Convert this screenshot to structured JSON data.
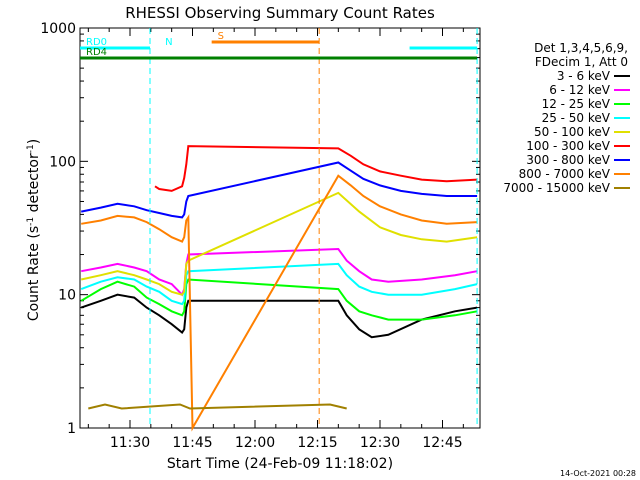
{
  "title": "RHESSI Observing Summary Count Rates",
  "footer_date": "14-Oct-2021 00:28",
  "legend": {
    "header": [
      "Det 1,3,4,5,6,9,",
      "FDecim 1, Att 0"
    ],
    "entries": [
      {
        "label": "3 - 6 keV",
        "color": "#000000"
      },
      {
        "label": "6 - 12 keV",
        "color": "#ff00ff"
      },
      {
        "label": "12 - 25 keV",
        "color": "#00ff00"
      },
      {
        "label": "25 - 50 keV",
        "color": "#00ffff"
      },
      {
        "label": "50 - 100 keV",
        "color": "#e0e000"
      },
      {
        "label": "100 - 300 keV",
        "color": "#ff0000"
      },
      {
        "label": "300 - 800 keV",
        "color": "#0000ff"
      },
      {
        "label": "800 - 7000 keV",
        "color": "#ff8000"
      },
      {
        "label": "7000 - 15000 keV",
        "color": "#a08000"
      }
    ]
  },
  "chart_data": {
    "type": "line",
    "title": "RHESSI Observing Summary Count Rates",
    "xlabel": "Start Time (24-Feb-09 11:18:02)",
    "ylabel": "Count Rate (s⁻¹ detector⁻¹)",
    "ylabel_main": "Count Rate (s",
    "ylabel_sup1": "-1",
    "ylabel_mid": " detector",
    "ylabel_sup2": "-1",
    "ylabel_end": ")",
    "y_scale": "log",
    "ylim": [
      1,
      1000
    ],
    "xlim": [
      "11:18:02",
      "12:54:00"
    ],
    "xlim_min": [
      678,
      774
    ],
    "x_ticks": [
      {
        "label": "11:30",
        "t": 690
      },
      {
        "label": "11:45",
        "t": 705
      },
      {
        "label": "12:00",
        "t": 720
      },
      {
        "label": "12:15",
        "t": 735
      },
      {
        "label": "12:30",
        "t": 750
      },
      {
        "label": "12:45",
        "t": 765
      }
    ],
    "y_ticks": [
      {
        "label": "1",
        "v": 1
      },
      {
        "label": "10",
        "v": 10
      },
      {
        "label": "100",
        "v": 100
      },
      {
        "label": "1000",
        "v": 1000
      }
    ],
    "flags": [
      {
        "name": "RD0",
        "color": "#00ffff",
        "segments": [
          [
            678,
            694.8
          ],
          [
            757.1,
            773.3
          ]
        ]
      },
      {
        "name": "RD4",
        "color": "#008000",
        "segments": [
          [
            678,
            697.2
          ],
          [
            697.2,
            773.3
          ]
        ]
      },
      {
        "name": "S",
        "color": "#ff8000",
        "segments": [
          [
            709.6,
            735.4
          ]
        ]
      },
      {
        "name": "N",
        "color": "#00ffff",
        "segments": []
      }
    ],
    "markers": [
      {
        "t": 694.8,
        "color": "#00ffff"
      },
      {
        "t": 735.4,
        "color": "#ff8000"
      },
      {
        "t": 773.3,
        "color": "#00ffff"
      }
    ],
    "series": [
      {
        "name": "3 - 6 keV",
        "color": "#000000",
        "data": [
          [
            678.3,
            8
          ],
          [
            683,
            9
          ],
          [
            687,
            10
          ],
          [
            691,
            9.5
          ],
          [
            694,
            8
          ],
          [
            697,
            7
          ],
          [
            700,
            6
          ],
          [
            702.5,
            5.2
          ],
          [
            703,
            5.5
          ],
          [
            703.5,
            8
          ],
          [
            704,
            9
          ],
          [
            740,
            9
          ],
          [
            742,
            7
          ],
          [
            745,
            5.5
          ],
          [
            748,
            4.8
          ],
          [
            752,
            5
          ],
          [
            760,
            6.5
          ],
          [
            768,
            7.5
          ],
          [
            773.3,
            8
          ]
        ]
      },
      {
        "name": "6 - 12 keV",
        "color": "#ff00ff",
        "data": [
          [
            678.3,
            15
          ],
          [
            683,
            16
          ],
          [
            687,
            17
          ],
          [
            691,
            16
          ],
          [
            694,
            15
          ],
          [
            697,
            13
          ],
          [
            700,
            12
          ],
          [
            702.5,
            10
          ],
          [
            703,
            11
          ],
          [
            703.5,
            17
          ],
          [
            704,
            20
          ],
          [
            740,
            22
          ],
          [
            742,
            18
          ],
          [
            745,
            15
          ],
          [
            748,
            13
          ],
          [
            752,
            12.5
          ],
          [
            760,
            13
          ],
          [
            768,
            14
          ],
          [
            773.3,
            15
          ]
        ]
      },
      {
        "name": "12 - 25 keV",
        "color": "#00ff00",
        "data": [
          [
            678.3,
            9
          ],
          [
            683,
            11
          ],
          [
            687,
            12.5
          ],
          [
            691,
            11.5
          ],
          [
            694,
            9.5
          ],
          [
            697,
            8.5
          ],
          [
            700,
            7.5
          ],
          [
            702.5,
            7
          ],
          [
            703,
            7.5
          ],
          [
            703.5,
            12
          ],
          [
            704,
            13
          ],
          [
            740,
            11
          ],
          [
            742,
            9
          ],
          [
            745,
            7.5
          ],
          [
            748,
            7
          ],
          [
            752,
            6.5
          ],
          [
            760,
            6.5
          ],
          [
            768,
            7
          ],
          [
            773.3,
            7.5
          ]
        ]
      },
      {
        "name": "25 - 50 keV",
        "color": "#00ffff",
        "data": [
          [
            678.3,
            11
          ],
          [
            683,
            12.5
          ],
          [
            687,
            13.5
          ],
          [
            691,
            13
          ],
          [
            694,
            11.5
          ],
          [
            697,
            10.5
          ],
          [
            700,
            9
          ],
          [
            702.5,
            8.5
          ],
          [
            703,
            9
          ],
          [
            703.5,
            14
          ],
          [
            704,
            15
          ],
          [
            740,
            17
          ],
          [
            742,
            14
          ],
          [
            745,
            11.5
          ],
          [
            748,
            10.5
          ],
          [
            752,
            10
          ],
          [
            760,
            10
          ],
          [
            768,
            11
          ],
          [
            773.3,
            12
          ]
        ]
      },
      {
        "name": "50 - 100 keV",
        "color": "#e0e000",
        "data": [
          [
            678.3,
            13
          ],
          [
            683,
            14
          ],
          [
            687,
            15
          ],
          [
            691,
            14
          ],
          [
            694,
            13
          ],
          [
            697,
            12
          ],
          [
            700,
            10.5
          ],
          [
            702.5,
            10
          ],
          [
            703,
            10.5
          ],
          [
            703.5,
            17
          ],
          [
            704,
            18
          ],
          [
            740,
            58
          ],
          [
            745,
            42
          ],
          [
            750,
            32
          ],
          [
            755,
            28
          ],
          [
            760,
            26
          ],
          [
            766,
            25
          ],
          [
            773.3,
            27
          ]
        ]
      },
      {
        "name": "100 - 300 keV",
        "color": "#ff0000",
        "data": [
          [
            696,
            65
          ],
          [
            697,
            62
          ],
          [
            700,
            60
          ],
          [
            702.5,
            65
          ],
          [
            703,
            75
          ],
          [
            703.5,
            95
          ],
          [
            704,
            130
          ],
          [
            740,
            125
          ],
          [
            743,
            110
          ],
          [
            746,
            95
          ],
          [
            750,
            84
          ],
          [
            755,
            78
          ],
          [
            760,
            73
          ],
          [
            766,
            71
          ],
          [
            773.3,
            73
          ]
        ]
      },
      {
        "name": "300 - 800 keV",
        "color": "#0000ff",
        "data": [
          [
            678.3,
            42
          ],
          [
            683,
            45
          ],
          [
            687,
            48
          ],
          [
            691,
            46
          ],
          [
            694,
            43
          ],
          [
            697,
            41
          ],
          [
            700,
            39
          ],
          [
            702.5,
            38
          ],
          [
            703,
            40
          ],
          [
            703.5,
            50
          ],
          [
            704,
            55
          ],
          [
            740,
            98
          ],
          [
            743,
            85
          ],
          [
            746,
            74
          ],
          [
            750,
            66
          ],
          [
            755,
            60
          ],
          [
            760,
            57
          ],
          [
            766,
            55
          ],
          [
            773.3,
            55
          ]
        ]
      },
      {
        "name": "800 - 7000 keV",
        "color": "#ff8000",
        "data": [
          [
            678.3,
            34
          ],
          [
            683,
            36
          ],
          [
            687,
            39
          ],
          [
            691,
            38
          ],
          [
            694,
            35
          ],
          [
            697,
            31
          ],
          [
            700,
            27
          ],
          [
            702.5,
            25
          ],
          [
            703,
            27
          ],
          [
            703.5,
            36
          ],
          [
            704,
            38
          ],
          [
            705,
            1
          ],
          [
            740,
            78
          ],
          [
            743,
            66
          ],
          [
            746,
            55
          ],
          [
            750,
            46
          ],
          [
            755,
            40
          ],
          [
            760,
            36
          ],
          [
            766,
            34
          ],
          [
            773.3,
            35
          ]
        ]
      },
      {
        "name": "7000 - 15000 keV",
        "color": "#a08000",
        "data": [
          [
            680,
            1.4
          ],
          [
            684,
            1.5
          ],
          [
            688,
            1.4
          ],
          [
            702,
            1.5
          ],
          [
            704.4,
            1.4
          ],
          [
            738,
            1.5
          ],
          [
            742,
            1.4
          ]
        ]
      }
    ]
  }
}
